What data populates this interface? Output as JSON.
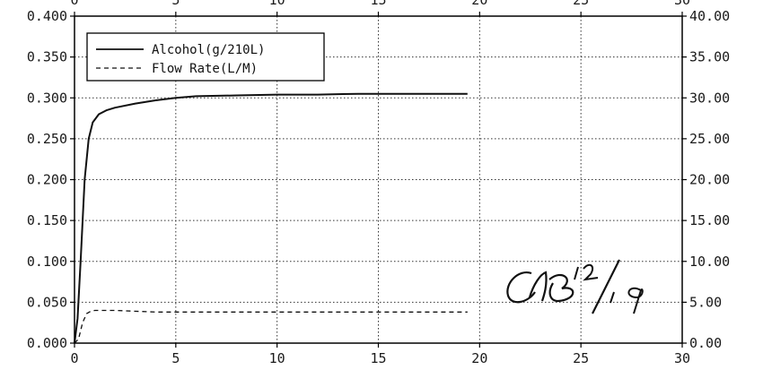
{
  "chart_data": {
    "type": "line",
    "title": "",
    "xlabel": "",
    "ylabel": "",
    "y2label": "",
    "xlim": [
      0,
      30
    ],
    "ylim": [
      0,
      0.4
    ],
    "y2lim": [
      0,
      40
    ],
    "grid": true,
    "legend_position": "top-left",
    "x_ticks": [
      0,
      5,
      10,
      15,
      20,
      25,
      30
    ],
    "x_tick_labels": [
      "0",
      "5",
      "10",
      "15",
      "20",
      "25",
      "30"
    ],
    "y_ticks": [
      0,
      0.05,
      0.1,
      0.15,
      0.2,
      0.25,
      0.3,
      0.35,
      0.4
    ],
    "y_tick_labels": [
      "0.000",
      "0.050",
      "0.100",
      "0.150",
      "0.200",
      "0.250",
      "0.300",
      "0.350",
      "0.400"
    ],
    "y2_ticks": [
      0,
      5,
      10,
      15,
      20,
      25,
      30,
      35,
      40
    ],
    "y2_tick_labels": [
      "0.00",
      "5.00",
      "10.00",
      "15.00",
      "20.00",
      "25.00",
      "30.00",
      "35.00",
      "40.00"
    ],
    "series": [
      {
        "name": "Alcohol(g/210L)",
        "axis": "left",
        "style": "solid",
        "color": "#111111",
        "x": [
          0,
          0.15,
          0.3,
          0.5,
          0.7,
          0.9,
          1.2,
          1.6,
          2,
          3,
          4,
          5,
          6,
          8,
          10,
          12,
          14,
          16,
          18,
          19.4
        ],
        "y": [
          0,
          0.03,
          0.1,
          0.2,
          0.25,
          0.27,
          0.28,
          0.285,
          0.288,
          0.293,
          0.297,
          0.3,
          0.302,
          0.303,
          0.304,
          0.304,
          0.305,
          0.305,
          0.305,
          0.305
        ]
      },
      {
        "name": "Flow Rate(L/M)",
        "axis": "right",
        "style": "dashed",
        "color": "#111111",
        "x": [
          0,
          0.2,
          0.4,
          0.6,
          0.8,
          1,
          2,
          4,
          6,
          8,
          10,
          12,
          14,
          16,
          18,
          19.4
        ],
        "y": [
          0,
          0.5,
          2.5,
          3.6,
          3.9,
          4.0,
          4.0,
          3.8,
          3.8,
          3.8,
          3.8,
          3.8,
          3.8,
          3.8,
          3.8,
          3.8
        ]
      }
    ],
    "annotations": [
      {
        "text": "OB 12/19",
        "kind": "handwritten-signature"
      }
    ]
  },
  "colors": {
    "line": "#111111",
    "grid": "#333333",
    "frame": "#000000",
    "legend_border": "#000000",
    "background": "#ffffff"
  }
}
